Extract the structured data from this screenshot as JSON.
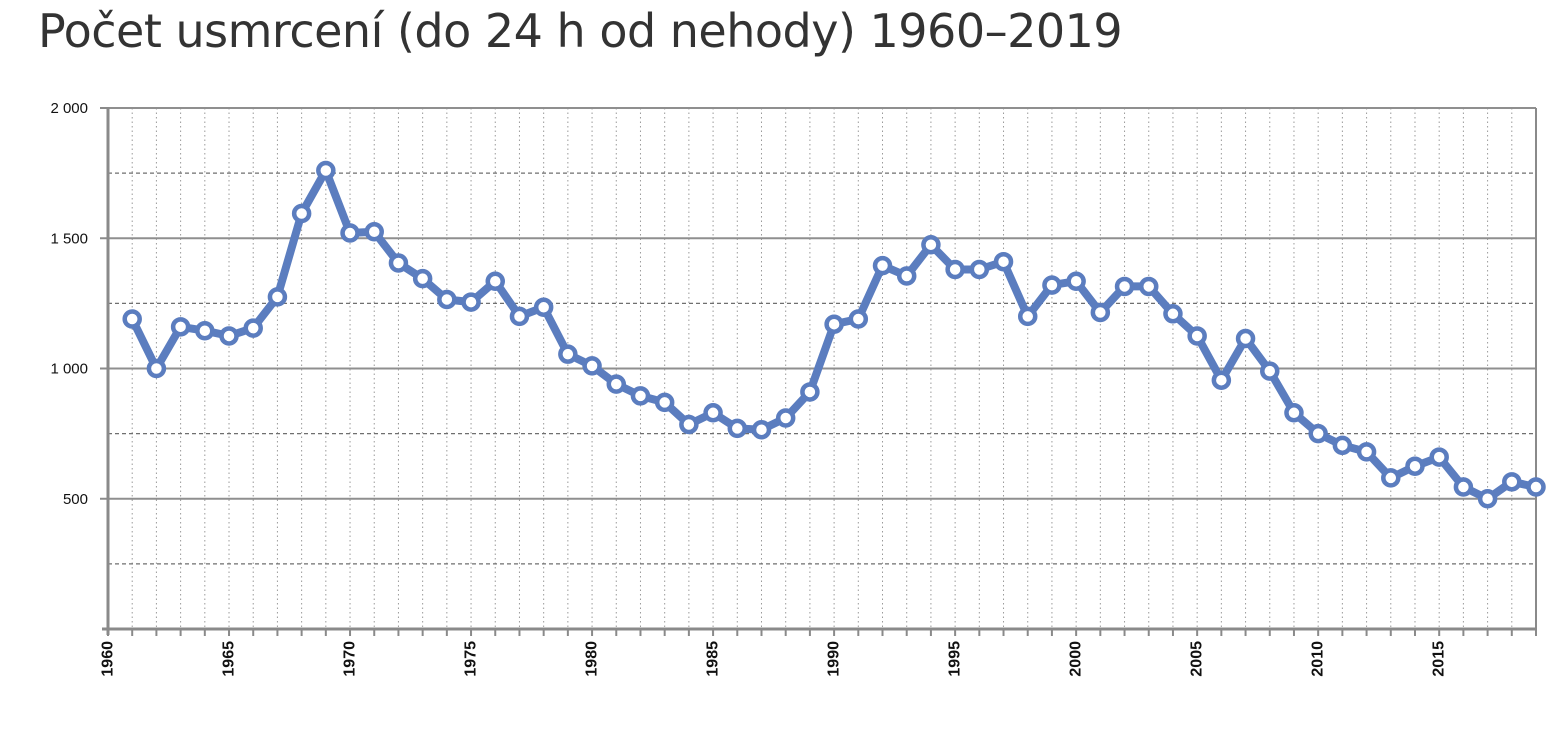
{
  "chart_data": {
    "type": "line",
    "title": "Počet usmrcení (do 24 h od nehody) 1960–2019",
    "xlabel": "",
    "ylabel": "",
    "xlim": [
      1960,
      2019
    ],
    "ylim": [
      0,
      2000
    ],
    "y_ticks": [
      {
        "value": 500,
        "label": "500"
      },
      {
        "value": 1000,
        "label": "1 000"
      },
      {
        "value": 1500,
        "label": "1 500"
      },
      {
        "value": 2000,
        "label": "2 000"
      }
    ],
    "x_ticks": [
      1960,
      1965,
      1970,
      1975,
      1980,
      1985,
      1990,
      1995,
      2000,
      2005,
      2010,
      2015
    ],
    "grid": true,
    "legend": "none",
    "color": "#5b7dbf",
    "x": [
      1961,
      1962,
      1963,
      1964,
      1965,
      1966,
      1967,
      1968,
      1969,
      1970,
      1971,
      1972,
      1973,
      1974,
      1975,
      1976,
      1977,
      1978,
      1979,
      1980,
      1981,
      1982,
      1983,
      1984,
      1985,
      1986,
      1987,
      1988,
      1989,
      1990,
      1991,
      1992,
      1993,
      1994,
      1995,
      1996,
      1997,
      1998,
      1999,
      2000,
      2001,
      2002,
      2003,
      2004,
      2005,
      2006,
      2007,
      2008,
      2009,
      2010,
      2011,
      2012,
      2013,
      2014,
      2015,
      2016,
      2017,
      2018,
      2019
    ],
    "values": [
      1190,
      1000,
      1160,
      1145,
      1125,
      1155,
      1275,
      1595,
      1760,
      1520,
      1525,
      1405,
      1345,
      1265,
      1255,
      1335,
      1200,
      1235,
      1055,
      1010,
      940,
      895,
      870,
      785,
      830,
      770,
      765,
      810,
      910,
      1170,
      1190,
      1395,
      1355,
      1475,
      1380,
      1380,
      1410,
      1200,
      1320,
      1335,
      1215,
      1315,
      1315,
      1210,
      1125,
      955,
      1115,
      990,
      830,
      750,
      705,
      680,
      580,
      625,
      660,
      545,
      500,
      565,
      545
    ]
  }
}
